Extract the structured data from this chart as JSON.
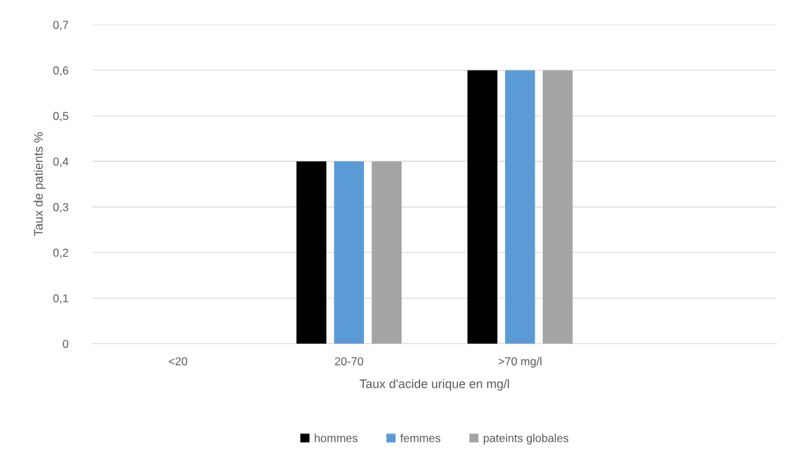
{
  "chart_data": {
    "type": "bar",
    "xlabel": "Taux d'acide urique en mg/l",
    "ylabel": "Taux de patients %",
    "categories": [
      "<20",
      "20-70",
      ">70 mg/l",
      null
    ],
    "series": [
      {
        "name": "hommes",
        "color": "#000000",
        "values": [
          0,
          0.4,
          0.6,
          0
        ]
      },
      {
        "name": "femmes",
        "color": "#5b9bd5",
        "values": [
          0,
          0.4,
          0.6,
          0
        ]
      },
      {
        "name": "pateints globales",
        "color": "#a5a5a5",
        "values": [
          0,
          0.4,
          0.6,
          0
        ]
      }
    ],
    "ylim": [
      0,
      0.7
    ],
    "yticks": [
      {
        "value": 0,
        "label": "0"
      },
      {
        "value": 0.1,
        "label": "0,1"
      },
      {
        "value": 0.2,
        "label": "0,2"
      },
      {
        "value": 0.3,
        "label": "0,3"
      },
      {
        "value": 0.4,
        "label": "0,4"
      },
      {
        "value": 0.5,
        "label": "0,5"
      },
      {
        "value": 0.6,
        "label": "0,6"
      },
      {
        "value": 0.7,
        "label": "0,7"
      }
    ],
    "grid": "y",
    "legend": "bottom"
  }
}
